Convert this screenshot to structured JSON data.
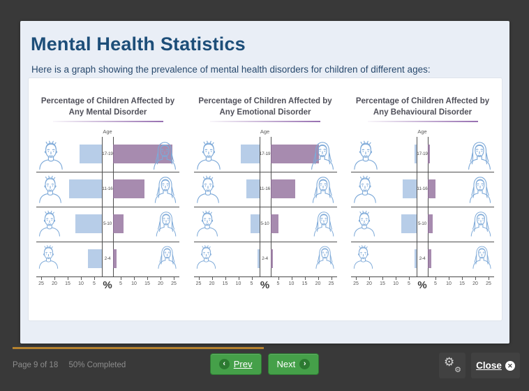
{
  "header": {
    "title": "Mental Health Statistics",
    "subtitle": "Here is a graph showing the prevalence of mental health disorders for children of different ages:"
  },
  "colors": {
    "boys_bar": "#b7cde8",
    "girls_bar": "#94719e",
    "face_line": "#7da9d8",
    "title_blue": "#1d4e79",
    "accent_green": "#45a049",
    "progress_amber": "#b5822e",
    "underline_purple": "#8b5fa8"
  },
  "chart_data": [
    {
      "type": "bar",
      "orientation": "diverging-horizontal",
      "title": "Percentage of Children Affected by Any Mental Disorder",
      "age_axis_label": "Age",
      "categories": [
        "17-19",
        "11-16",
        "5-10",
        "2-4"
      ],
      "series": [
        {
          "name": "Boys",
          "values": [
            10.5,
            14.5,
            12,
            7.5
          ]
        },
        {
          "name": "Girls",
          "values": [
            24.5,
            14,
            6,
            3.5
          ]
        }
      ],
      "unit": "%",
      "axis_ticks": [
        25,
        20,
        15,
        10,
        5
      ],
      "xlim": [
        -25,
        25
      ],
      "legend": "none"
    },
    {
      "type": "bar",
      "orientation": "diverging-horizontal",
      "title": "Percentage of Children Affected by Any Emotional Disorder",
      "age_axis_label": "Age",
      "categories": [
        "17-19",
        "11-16",
        "5-10",
        "2-4"
      ],
      "series": [
        {
          "name": "Boys",
          "values": [
            9,
            7,
            5.5,
            1
          ]
        },
        {
          "name": "Girls",
          "values": [
            20.5,
            11.5,
            5,
            1.5
          ]
        }
      ],
      "unit": "%",
      "axis_ticks": [
        25,
        20,
        15,
        10,
        5
      ],
      "xlim": [
        -25,
        25
      ],
      "legend": "none"
    },
    {
      "type": "bar",
      "orientation": "diverging-horizontal",
      "title": "Percentage of Children Affected by Any Behavioural Disorder",
      "age_axis_label": "Age",
      "categories": [
        "17-19",
        "11-16",
        "5-10",
        "2-4"
      ],
      "series": [
        {
          "name": "Boys",
          "values": [
            1.5,
            7.5,
            8,
            2.5
          ]
        },
        {
          "name": "Girls",
          "values": [
            2.5,
            5,
            4,
            3.5
          ]
        }
      ],
      "unit": "%",
      "axis_ticks": [
        25,
        20,
        15,
        10,
        5
      ],
      "xlim": [
        -25,
        25
      ],
      "legend": "none"
    }
  ],
  "footer": {
    "page_text": "Page 9 of 18",
    "completed_text": "50% Completed",
    "prev_label": "Prev",
    "next_label": "Next",
    "close_label": "Close",
    "progress_percent": 50
  }
}
